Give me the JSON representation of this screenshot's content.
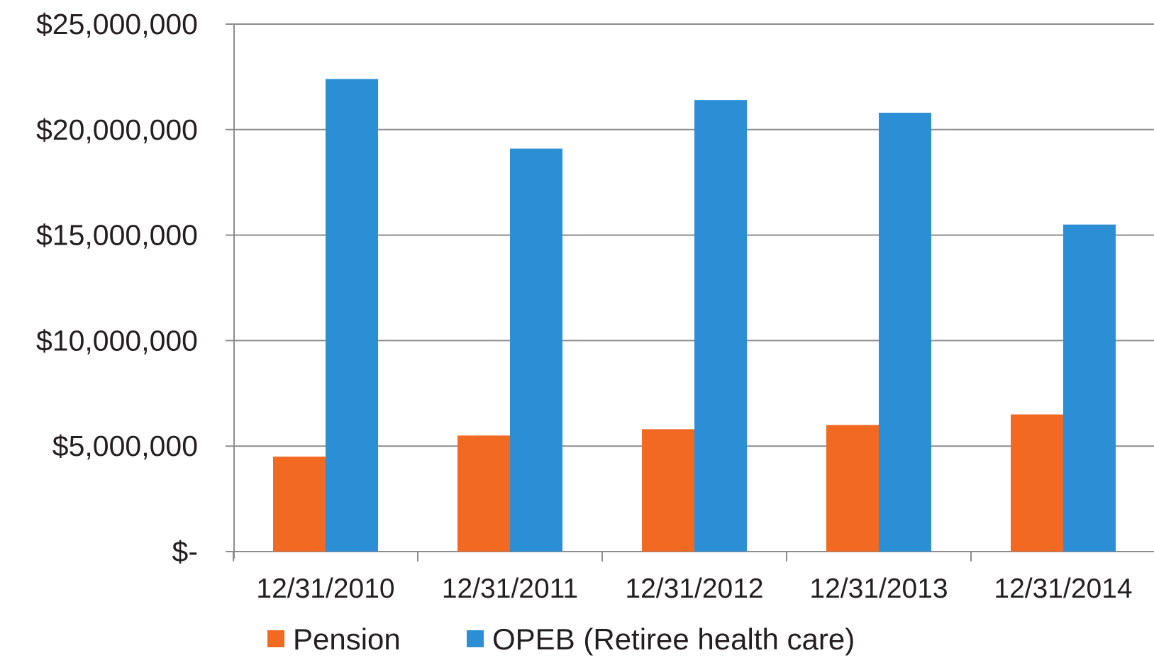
{
  "chart_data": {
    "type": "bar",
    "title": "",
    "xlabel": "",
    "ylabel": "",
    "categories": [
      "12/31/2010",
      "12/31/2011",
      "12/31/2012",
      "12/31/2013",
      "12/31/2014"
    ],
    "series": [
      {
        "name": "Pension",
        "color": "#f26a21",
        "values": [
          4500000,
          5500000,
          5800000,
          6000000,
          6500000
        ]
      },
      {
        "name": "OPEB (Retiree health care)",
        "color": "#2c8fd6",
        "values": [
          22400000,
          19100000,
          21400000,
          20800000,
          15500000
        ]
      }
    ],
    "ylim": [
      0,
      25000000
    ],
    "yticks": [
      0,
      5000000,
      10000000,
      15000000,
      20000000,
      25000000
    ],
    "ytick_labels": [
      "$-",
      "$5,000,000",
      "$10,000,000",
      "$15,000,000",
      "$20,000,000",
      "$25,000,000"
    ],
    "grid": true,
    "legend_position": "bottom",
    "colors": {
      "gridline": "#8c8c8c",
      "axis": "#8c8c8c",
      "text": "#231f20"
    }
  }
}
